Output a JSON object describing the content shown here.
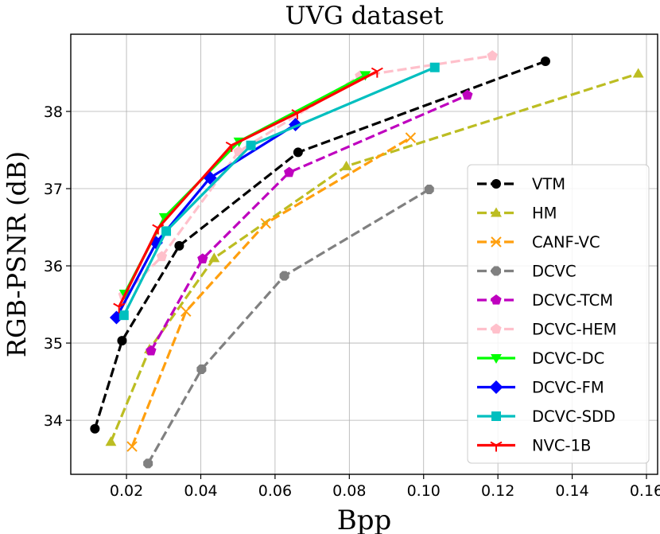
{
  "chart_data": {
    "type": "line",
    "title": "UVG dataset",
    "xlabel": "Bpp",
    "ylabel": "RGB-PSNR (dB)",
    "xlim": [
      0.005,
      0.163
    ],
    "ylim": [
      33.3,
      39.0
    ],
    "xticks": [
      0.02,
      0.04,
      0.06,
      0.08,
      0.1,
      0.12,
      0.14,
      0.16
    ],
    "xtick_labels": [
      "0.02",
      "0.04",
      "0.06",
      "0.08",
      "0.10",
      "0.12",
      "0.14",
      "0.16"
    ],
    "yticks": [
      34,
      35,
      36,
      37,
      38
    ],
    "ytick_labels": [
      "34",
      "35",
      "36",
      "37",
      "38"
    ],
    "grid": true,
    "legend_position": "bottom-right",
    "series": [
      {
        "name": "VTM",
        "color": "#000000",
        "dash": true,
        "marker": "circle",
        "x": [
          0.0115,
          0.0188,
          0.0342,
          0.0662,
          0.1328
        ],
        "y": [
          33.89,
          35.03,
          36.26,
          37.47,
          38.65
        ]
      },
      {
        "name": "HM",
        "color": "#bcbd22",
        "dash": true,
        "marker": "triangle-up",
        "x": [
          0.0158,
          0.0262,
          0.0436,
          0.0792,
          0.1578
        ],
        "y": [
          33.72,
          34.92,
          36.1,
          37.29,
          38.49
        ]
      },
      {
        "name": "CANF-VC",
        "color": "#ff9f0e",
        "dash": true,
        "marker": "x",
        "x": [
          0.0215,
          0.036,
          0.0575,
          0.0965
        ],
        "y": [
          33.66,
          35.41,
          36.55,
          37.66
        ]
      },
      {
        "name": "DCVC",
        "color": "#808080",
        "dash": true,
        "marker": "octagon",
        "x": [
          0.0258,
          0.0402,
          0.0625,
          0.1015
        ],
        "y": [
          33.44,
          34.66,
          35.87,
          36.99
        ]
      },
      {
        "name": "DCVC-TCM",
        "color": "#bf00bf",
        "dash": true,
        "marker": "pentagon",
        "x": [
          0.0266,
          0.0405,
          0.0638,
          0.1118
        ],
        "y": [
          34.9,
          36.09,
          37.21,
          38.21
        ]
      },
      {
        "name": "DCVC-HEM",
        "color": "#ffc0cb",
        "dash": true,
        "marker": "pentagon",
        "x": [
          0.0192,
          0.0295,
          0.0502,
          0.0829,
          0.1185
        ],
        "y": [
          35.62,
          36.12,
          37.48,
          38.46,
          38.72
        ]
      },
      {
        "name": "DCVC-DC",
        "color": "#00ff00",
        "dash": false,
        "marker": "triangle-down",
        "x": [
          0.0195,
          0.0302,
          0.0503,
          0.0843
        ],
        "y": [
          35.64,
          36.63,
          37.61,
          38.47
        ]
      },
      {
        "name": "DCVC-FM",
        "color": "#0000ff",
        "dash": false,
        "marker": "diamond",
        "x": [
          0.0173,
          0.028,
          0.0425,
          0.0655
        ],
        "y": [
          35.33,
          36.3,
          37.14,
          37.83
        ]
      },
      {
        "name": "DCVC-SDD",
        "color": "#00bfbf",
        "dash": false,
        "marker": "square",
        "x": [
          0.0193,
          0.0307,
          0.0535,
          0.103
        ],
        "y": [
          35.36,
          36.45,
          37.56,
          38.57
        ]
      },
      {
        "name": "NVC-1B",
        "color": "#ff0000",
        "dash": false,
        "marker": "tri-down",
        "x": [
          0.018,
          0.0285,
          0.0483,
          0.066,
          0.0875
        ],
        "y": [
          35.47,
          36.49,
          37.56,
          37.98,
          38.52
        ]
      }
    ]
  }
}
